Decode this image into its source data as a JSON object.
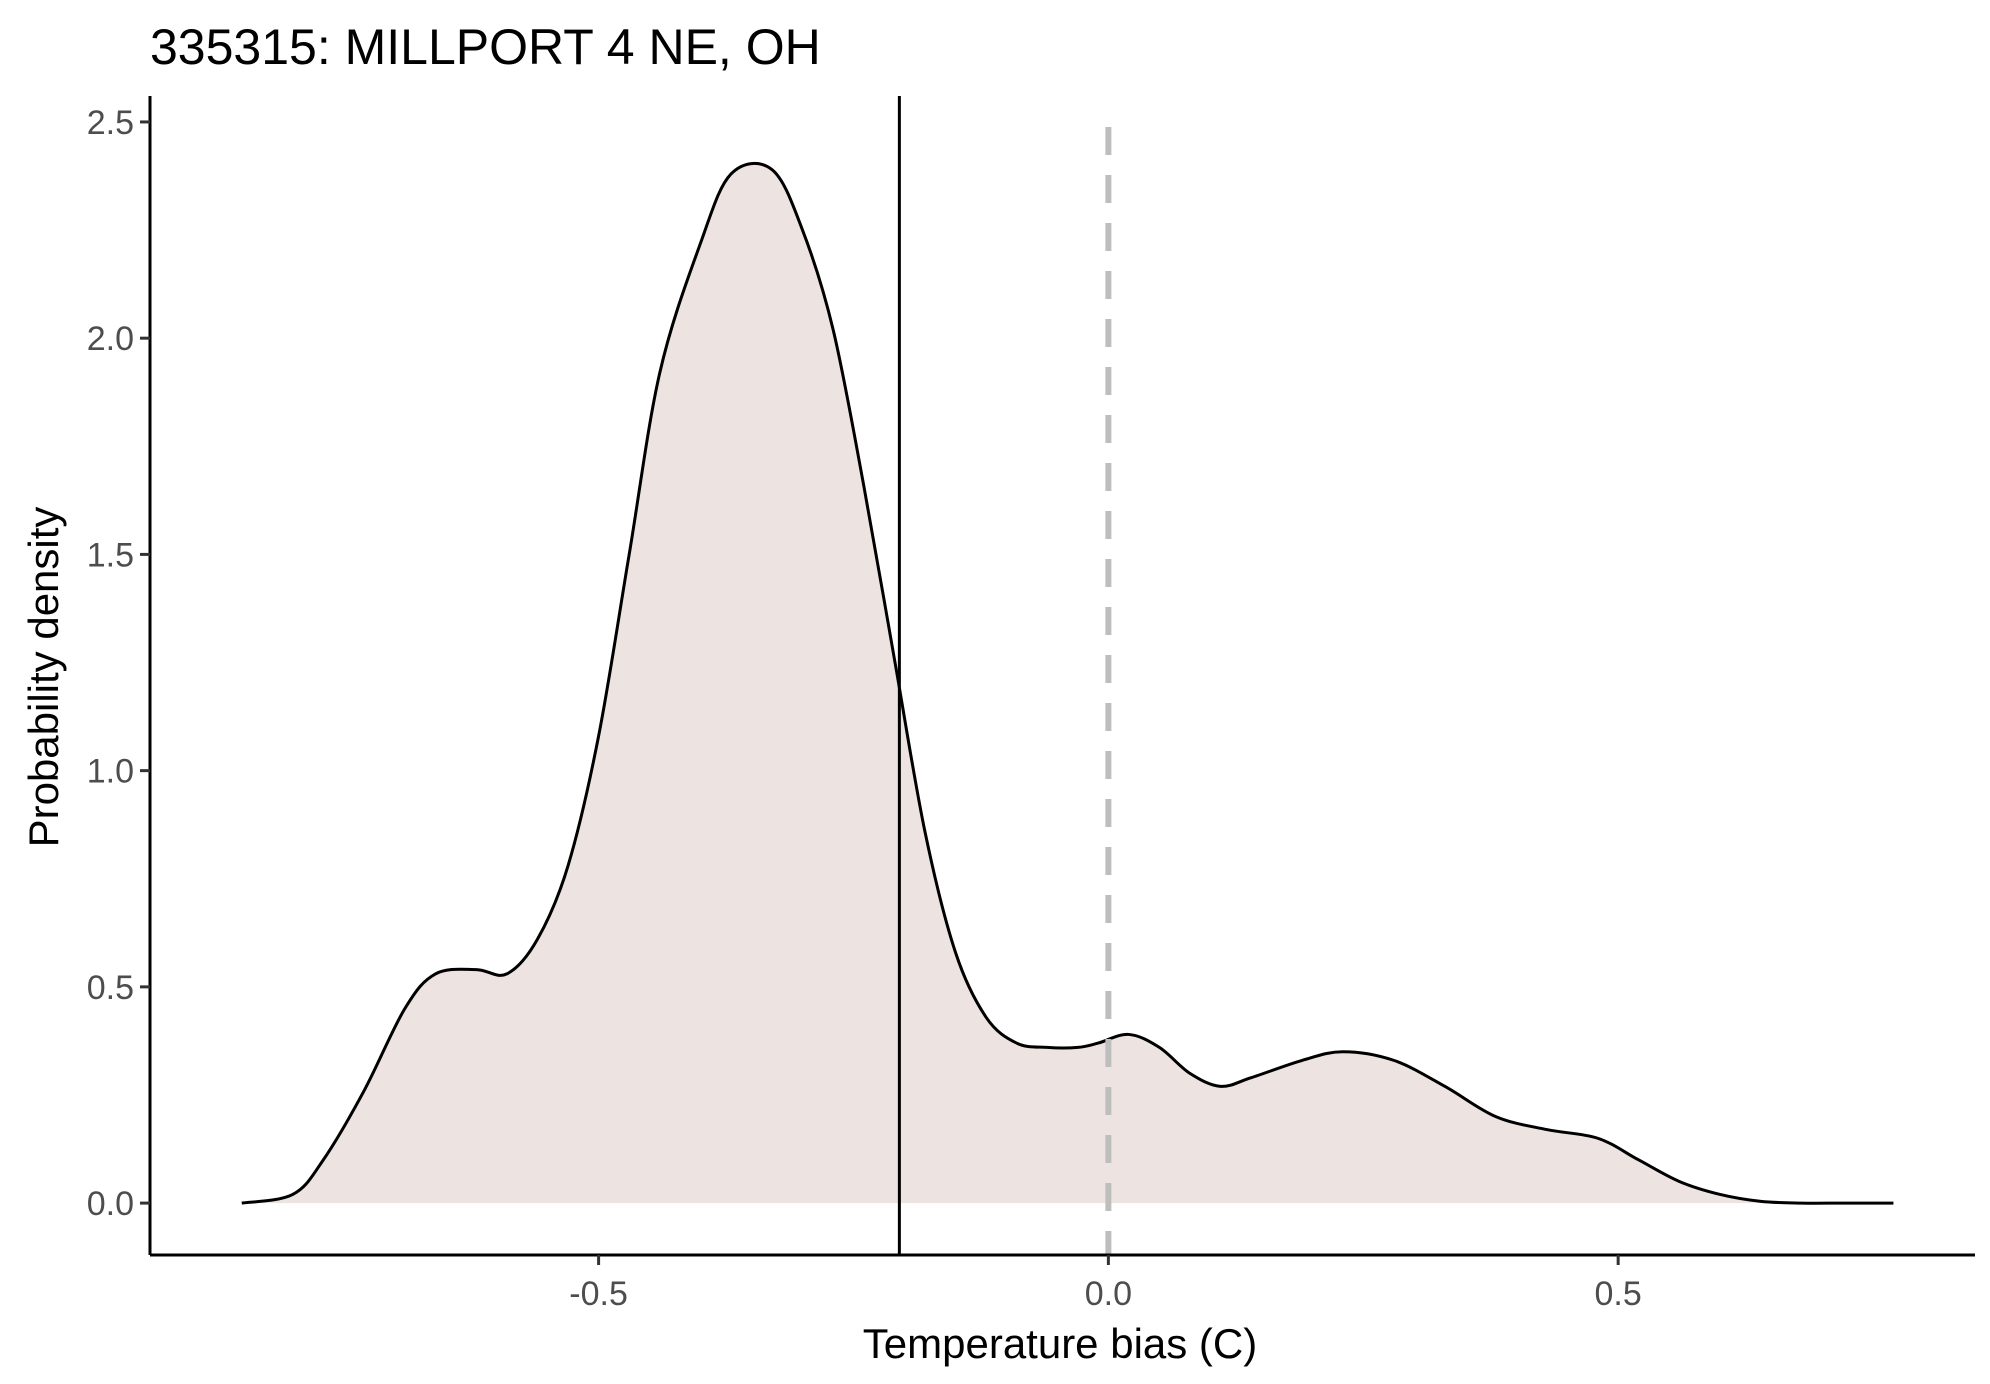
{
  "chart_data": {
    "type": "area",
    "title": "335315: MILLPORT 4 NE, OH",
    "xlabel": "Temperature bias (C)",
    "ylabel": "Probability density",
    "xlim": [
      -0.94,
      0.85
    ],
    "ylim": [
      -0.12,
      2.56
    ],
    "x_ticks": [
      -0.5,
      0.0,
      0.5
    ],
    "x_tick_labels": [
      "-0.5",
      "0.0",
      "0.5"
    ],
    "y_ticks": [
      0.0,
      0.5,
      1.0,
      1.5,
      2.0,
      2.5
    ],
    "y_tick_labels": [
      "0.0",
      "0.5",
      "1.0",
      "1.5",
      "2.0",
      "2.5"
    ],
    "grid": false,
    "legend": "none",
    "series": [
      {
        "x": [
          -0.85,
          -0.8,
          -0.77,
          -0.73,
          -0.69,
          -0.66,
          -0.62,
          -0.59,
          -0.56,
          -0.53,
          -0.5,
          -0.47,
          -0.44,
          -0.4,
          -0.37,
          -0.33,
          -0.3,
          -0.27,
          -0.24,
          -0.21,
          -0.18,
          -0.15,
          -0.12,
          -0.09,
          -0.06,
          -0.03,
          -0.01,
          0.02,
          0.05,
          0.08,
          0.11,
          0.14,
          0.19,
          0.23,
          0.28,
          0.33,
          0.38,
          0.43,
          0.48,
          0.52,
          0.56,
          0.6,
          0.64,
          0.68,
          0.72,
          0.77
        ],
        "y": [
          0.0,
          0.02,
          0.1,
          0.26,
          0.45,
          0.53,
          0.54,
          0.53,
          0.61,
          0.78,
          1.08,
          1.5,
          1.92,
          2.22,
          2.38,
          2.39,
          2.25,
          2.02,
          1.66,
          1.26,
          0.86,
          0.58,
          0.43,
          0.37,
          0.36,
          0.36,
          0.37,
          0.39,
          0.36,
          0.3,
          0.27,
          0.29,
          0.33,
          0.35,
          0.33,
          0.27,
          0.2,
          0.17,
          0.15,
          0.1,
          0.05,
          0.02,
          0.004,
          0.0,
          0.0,
          0.0
        ]
      }
    ],
    "vlines": [
      {
        "x": -0.205,
        "style": "solid",
        "color": "#000000"
      },
      {
        "x": 0.0,
        "style": "dashed",
        "color": "#bebebe"
      }
    ],
    "colors": {
      "fill": "#ede4e1",
      "line": "#000000"
    }
  }
}
